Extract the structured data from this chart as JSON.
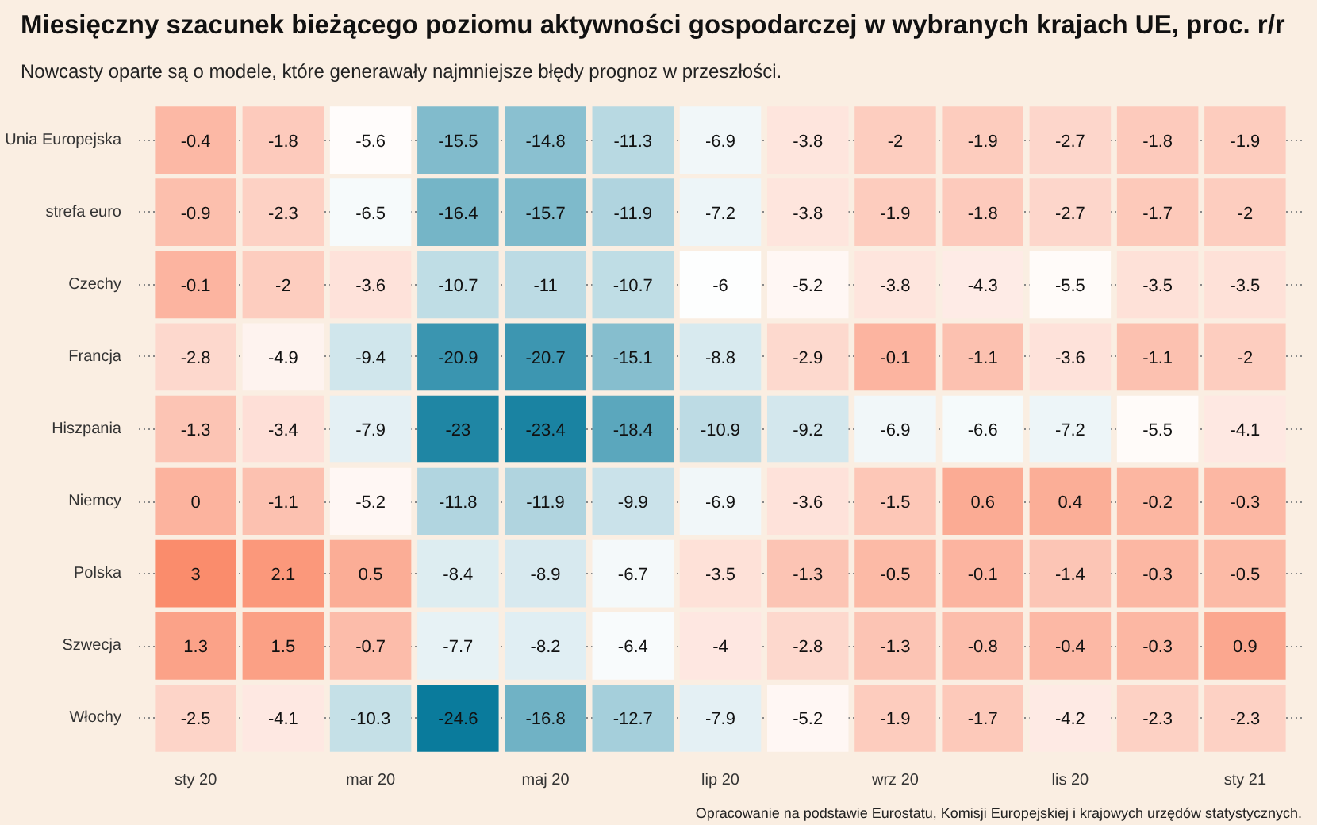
{
  "chart_data": {
    "type": "heatmap",
    "title": "Miesięczny szacunek bieżącego poziomu aktywności gospodarczej w wybranych krajach UE, proc. r/r",
    "subtitle": "Nowcasty oparte są o modele, które generawały najmniejsze błędy prognoz w przeszłości.",
    "categories": [
      "sty 20",
      null,
      "mar 20",
      null,
      "maj 20",
      null,
      "lip 20",
      null,
      "wrz 20",
      null,
      "lis 20",
      null,
      "sty 21"
    ],
    "y_categories": [
      "Unia Europejska",
      "strefa euro",
      "Czechy",
      "Francja",
      "Hiszpania",
      "Niemcy",
      "Polska",
      "Szwecja",
      "Włochy"
    ],
    "cells": [
      [
        -0.4,
        -1.8,
        -5.6,
        -15.5,
        -14.8,
        -11.3,
        -6.9,
        -3.8,
        -2,
        -1.9,
        -2.7,
        -1.8,
        -1.9
      ],
      [
        -0.9,
        -2.3,
        -6.5,
        -16.4,
        -15.7,
        -11.9,
        -7.2,
        -3.8,
        -1.9,
        -1.8,
        -2.7,
        -1.7,
        -2
      ],
      [
        -0.1,
        -2,
        -3.6,
        -10.7,
        -11,
        -10.7,
        -6,
        -5.2,
        -3.8,
        -4.3,
        -5.5,
        -3.5,
        -3.5
      ],
      [
        -2.8,
        -4.9,
        -9.4,
        -20.9,
        -20.7,
        -15.1,
        -8.8,
        -2.9,
        -0.1,
        -1.1,
        -3.6,
        -1.1,
        -2
      ],
      [
        -1.3,
        -3.4,
        -7.9,
        -23,
        -23.4,
        -18.4,
        -10.9,
        -9.2,
        -6.9,
        -6.6,
        -7.2,
        -5.5,
        -4.1
      ],
      [
        0,
        -1.1,
        -5.2,
        -11.8,
        -11.9,
        -9.9,
        -6.9,
        -3.6,
        -1.5,
        0.6,
        0.4,
        -0.2,
        -0.3
      ],
      [
        3,
        2.1,
        0.5,
        -8.4,
        -8.9,
        -6.7,
        -3.5,
        -1.3,
        -0.5,
        -0.1,
        -1.4,
        -0.3,
        -0.5
      ],
      [
        1.3,
        1.5,
        -0.7,
        -7.7,
        -8.2,
        -6.4,
        -4,
        -2.8,
        -1.3,
        -0.8,
        -0.4,
        -0.3,
        0.9
      ],
      [
        -2.5,
        -4.1,
        -10.3,
        -24.6,
        -16.8,
        -12.7,
        -7.9,
        -5.2,
        -1.9,
        -1.7,
        -4.2,
        -2.3,
        -2.3
      ]
    ],
    "data_labels": true,
    "grid": "y",
    "annotations": [
      "Opracowanie na podstawie Eurostatu, Komisji Europejskiej i krajowych urzędów statystycznych."
    ]
  }
}
